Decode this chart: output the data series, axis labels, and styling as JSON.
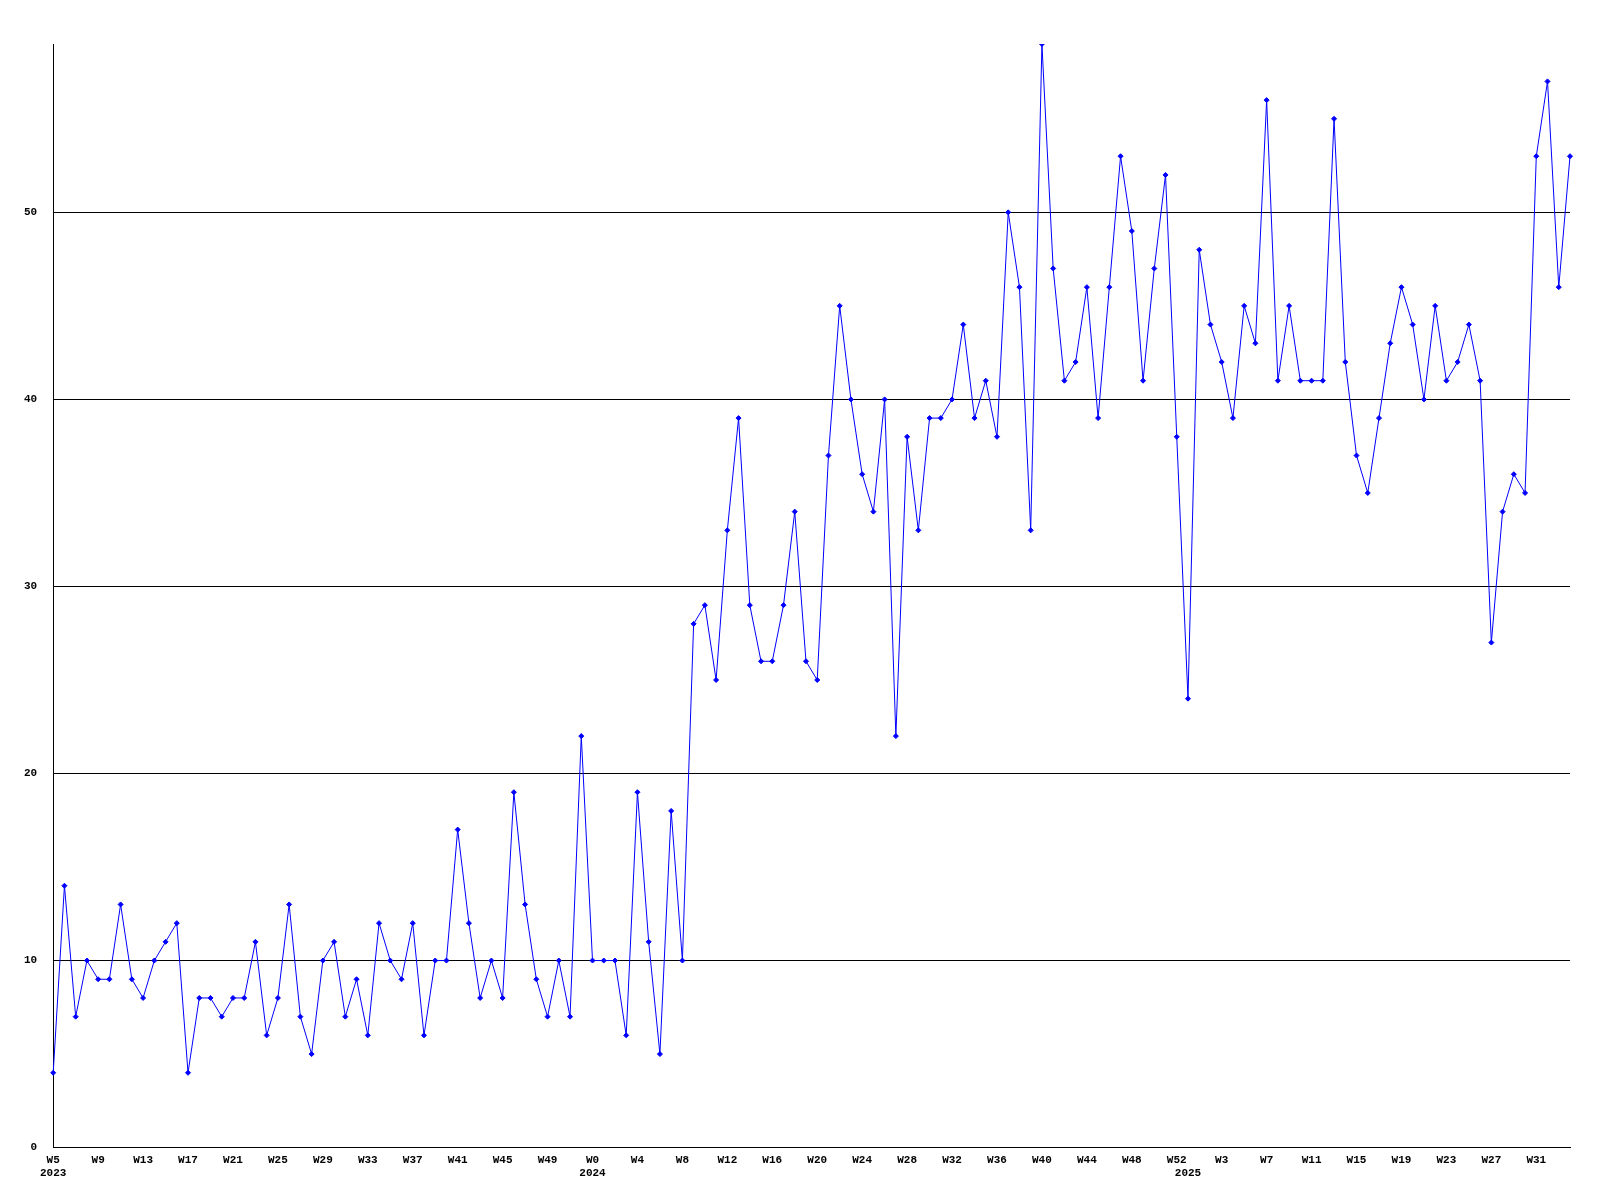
{
  "chart_data": {
    "type": "line",
    "categories": [
      "W5\n2023",
      null,
      null,
      null,
      "W9",
      null,
      null,
      null,
      "W13",
      null,
      null,
      null,
      "W17",
      null,
      null,
      null,
      "W21",
      null,
      null,
      null,
      "W25",
      null,
      null,
      null,
      "W29",
      null,
      null,
      null,
      "W33",
      null,
      null,
      null,
      "W37",
      null,
      null,
      null,
      "W41",
      null,
      null,
      null,
      "W45",
      null,
      null,
      null,
      "W49",
      null,
      null,
      null,
      "W0\n2024",
      null,
      null,
      null,
      "W4",
      null,
      null,
      null,
      "W8",
      null,
      null,
      null,
      "W12",
      null,
      null,
      null,
      "W16",
      null,
      null,
      null,
      "W20",
      null,
      null,
      null,
      "W24",
      null,
      null,
      null,
      "W28",
      null,
      null,
      null,
      "W32",
      null,
      null,
      null,
      "W36",
      null,
      null,
      null,
      "W40",
      null,
      null,
      null,
      "W44",
      null,
      null,
      null,
      "W48",
      null,
      null,
      null,
      "W52",
      "\n2025",
      null,
      null,
      "W3",
      null,
      null,
      null,
      "W7",
      null,
      null,
      null,
      "W11",
      null,
      null,
      null,
      "W15",
      null,
      null,
      null,
      "W19",
      null,
      null,
      null,
      "W23",
      null,
      null,
      null,
      "W27",
      null,
      null,
      null,
      "W31",
      null,
      null,
      null
    ],
    "values": [
      4,
      14,
      7,
      10,
      9,
      9,
      13,
      9,
      8,
      10,
      11,
      12,
      4,
      8,
      8,
      7,
      8,
      8,
      11,
      6,
      8,
      13,
      7,
      5,
      10,
      11,
      7,
      9,
      6,
      12,
      10,
      9,
      12,
      6,
      10,
      10,
      17,
      12,
      8,
      10,
      8,
      19,
      13,
      9,
      7,
      10,
      7,
      22,
      10,
      10,
      10,
      6,
      19,
      11,
      5,
      18,
      10,
      28,
      29,
      25,
      33,
      39,
      29,
      26,
      26,
      29,
      34,
      26,
      25,
      37,
      45,
      40,
      36,
      34,
      40,
      22,
      38,
      33,
      39,
      39,
      40,
      44,
      39,
      41,
      38,
      50,
      46,
      33,
      59,
      47,
      41,
      42,
      46,
      39,
      46,
      53,
      49,
      41,
      47,
      52,
      38,
      24,
      48,
      44,
      42,
      39,
      45,
      43,
      56,
      41,
      45,
      41,
      41,
      41,
      55,
      42,
      37,
      35,
      39,
      43,
      46,
      44,
      40,
      45,
      41,
      42,
      44,
      41,
      27,
      34,
      36,
      35,
      53,
      57,
      46,
      53
    ],
    "color": "#0000ff",
    "ylim": [
      0,
      59
    ],
    "yticks": [
      0,
      10,
      20,
      30,
      40,
      50
    ],
    "grid": "y",
    "marker": "diamond"
  }
}
